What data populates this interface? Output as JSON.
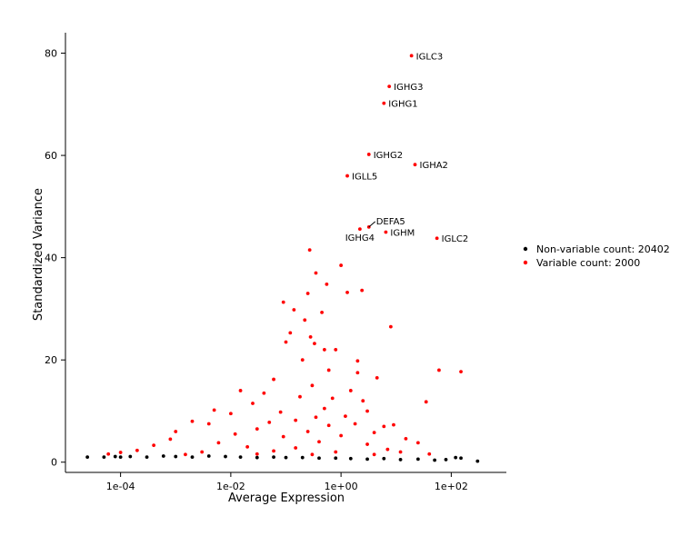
{
  "chart_data": {
    "type": "scatter",
    "title": "",
    "xlabel": "Average Expression",
    "ylabel": "Standardized Variance",
    "x_scale": "log10",
    "xlim": [
      1e-05,
      1000
    ],
    "ylim": [
      -2,
      84
    ],
    "x_ticks": [
      {
        "value": 0.0001,
        "label": "1e-04"
      },
      {
        "value": 0.01,
        "label": "1e-02"
      },
      {
        "value": 1,
        "label": "1e+00"
      },
      {
        "value": 100,
        "label": "1e+02"
      }
    ],
    "y_ticks": [
      {
        "value": 0,
        "label": "0"
      },
      {
        "value": 20,
        "label": "20"
      },
      {
        "value": 40,
        "label": "40"
      },
      {
        "value": 60,
        "label": "60"
      },
      {
        "value": 80,
        "label": "80"
      }
    ],
    "grid": false,
    "legend_position": "right",
    "series": [
      {
        "name": "Non-variable count: 20402",
        "color": "#000000",
        "points": [
          [
            2.5e-05,
            1.0
          ],
          [
            5e-05,
            1.0
          ],
          [
            8e-05,
            1.1
          ],
          [
            0.0001,
            1.0
          ],
          [
            0.00015,
            1.1
          ],
          [
            0.0003,
            1.0
          ],
          [
            0.0006,
            1.2
          ],
          [
            0.001,
            1.1
          ],
          [
            0.002,
            1.0
          ],
          [
            0.004,
            1.2
          ],
          [
            0.008,
            1.1
          ],
          [
            0.015,
            1.0
          ],
          [
            0.03,
            0.9
          ],
          [
            0.06,
            1.0
          ],
          [
            0.1,
            0.9
          ],
          [
            0.2,
            0.9
          ],
          [
            0.4,
            0.8
          ],
          [
            0.8,
            0.8
          ],
          [
            1.5,
            0.7
          ],
          [
            3.0,
            0.6
          ],
          [
            6.0,
            0.7
          ],
          [
            12,
            0.5
          ],
          [
            25,
            0.6
          ],
          [
            50,
            0.4
          ],
          [
            80,
            0.5
          ],
          [
            120,
            0.9
          ],
          [
            150,
            0.8
          ],
          [
            300,
            0.2
          ]
        ]
      },
      {
        "name": "Variable count: 2000",
        "color": "#ff0000",
        "points": [
          [
            19,
            79.5
          ],
          [
            7.5,
            73.5
          ],
          [
            6.0,
            70.2
          ],
          [
            3.2,
            60.2
          ],
          [
            22,
            58.2
          ],
          [
            1.3,
            56.0
          ],
          [
            3.2,
            46.0
          ],
          [
            2.2,
            45.6
          ],
          [
            6.5,
            45.0
          ],
          [
            55,
            43.8
          ],
          [
            0.27,
            41.5
          ],
          [
            0.35,
            37.0
          ],
          [
            1.0,
            38.5
          ],
          [
            0.25,
            33.0
          ],
          [
            0.55,
            34.8
          ],
          [
            1.3,
            33.2
          ],
          [
            2.4,
            33.6
          ],
          [
            0.09,
            31.3
          ],
          [
            0.14,
            29.8
          ],
          [
            0.45,
            29.3
          ],
          [
            0.22,
            27.8
          ],
          [
            8.0,
            26.5
          ],
          [
            0.12,
            25.3
          ],
          [
            0.28,
            24.5
          ],
          [
            0.33,
            23.2
          ],
          [
            0.5,
            22.0
          ],
          [
            0.8,
            22.0
          ],
          [
            0.1,
            23.5
          ],
          [
            2.0,
            19.8
          ],
          [
            0.2,
            20.0
          ],
          [
            60,
            18.0
          ],
          [
            150,
            17.7
          ],
          [
            2.0,
            17.5
          ],
          [
            0.6,
            18.0
          ],
          [
            0.06,
            16.2
          ],
          [
            4.5,
            16.5
          ],
          [
            1.5,
            14.0
          ],
          [
            35,
            11.8
          ],
          [
            0.04,
            13.5
          ],
          [
            0.015,
            14.0
          ],
          [
            0.3,
            15.0
          ],
          [
            0.7,
            12.5
          ],
          [
            0.025,
            11.5
          ],
          [
            0.18,
            12.8
          ],
          [
            2.5,
            12.0
          ],
          [
            0.005,
            10.2
          ],
          [
            0.5,
            10.5
          ],
          [
            3.0,
            10.0
          ],
          [
            0.01,
            9.5
          ],
          [
            1.2,
            9.0
          ],
          [
            0.08,
            9.8
          ],
          [
            0.35,
            8.8
          ],
          [
            9.0,
            7.3
          ],
          [
            0.002,
            8.0
          ],
          [
            0.15,
            8.2
          ],
          [
            6.0,
            7.0
          ],
          [
            0.004,
            7.5
          ],
          [
            0.6,
            7.2
          ],
          [
            0.05,
            7.8
          ],
          [
            1.8,
            7.5
          ],
          [
            0.001,
            6.0
          ],
          [
            0.03,
            6.5
          ],
          [
            0.25,
            6.0
          ],
          [
            4.0,
            5.8
          ],
          [
            0.012,
            5.5
          ],
          [
            0.0008,
            4.5
          ],
          [
            0.09,
            5.0
          ],
          [
            1.0,
            5.2
          ],
          [
            15,
            4.6
          ],
          [
            0.0004,
            3.3
          ],
          [
            0.006,
            3.8
          ],
          [
            0.4,
            4.0
          ],
          [
            3.0,
            3.5
          ],
          [
            0.0002,
            2.3
          ],
          [
            0.02,
            3.0
          ],
          [
            0.15,
            2.8
          ],
          [
            7.0,
            2.5
          ],
          [
            25,
            3.8
          ],
          [
            0.0001,
            1.9
          ],
          [
            0.003,
            2.0
          ],
          [
            0.06,
            2.2
          ],
          [
            0.8,
            2.0
          ],
          [
            12,
            2.0
          ],
          [
            6e-05,
            1.6
          ],
          [
            0.0015,
            1.5
          ],
          [
            0.03,
            1.6
          ],
          [
            0.3,
            1.5
          ],
          [
            4.0,
            1.5
          ],
          [
            40,
            1.6
          ]
        ]
      }
    ],
    "annotations": [
      {
        "gene": "IGLC3",
        "x": 19,
        "y": 79.5,
        "side": "right"
      },
      {
        "gene": "IGHG3",
        "x": 7.5,
        "y": 73.5,
        "side": "right"
      },
      {
        "gene": "IGHG1",
        "x": 6.0,
        "y": 70.2,
        "side": "right"
      },
      {
        "gene": "IGHG2",
        "x": 3.2,
        "y": 60.2,
        "side": "right"
      },
      {
        "gene": "IGHA2",
        "x": 22,
        "y": 58.2,
        "side": "right"
      },
      {
        "gene": "IGLL5",
        "x": 1.3,
        "y": 56.0,
        "side": "right"
      },
      {
        "gene": "DEFA5",
        "x": 3.2,
        "y": 46.0,
        "side": "upper-right",
        "leader": true
      },
      {
        "gene": "IGHG4",
        "x": 2.2,
        "y": 45.6,
        "side": "below"
      },
      {
        "gene": "IGHM",
        "x": 6.5,
        "y": 45.0,
        "side": "right"
      },
      {
        "gene": "IGLC2",
        "x": 55,
        "y": 43.8,
        "side": "right"
      }
    ]
  }
}
